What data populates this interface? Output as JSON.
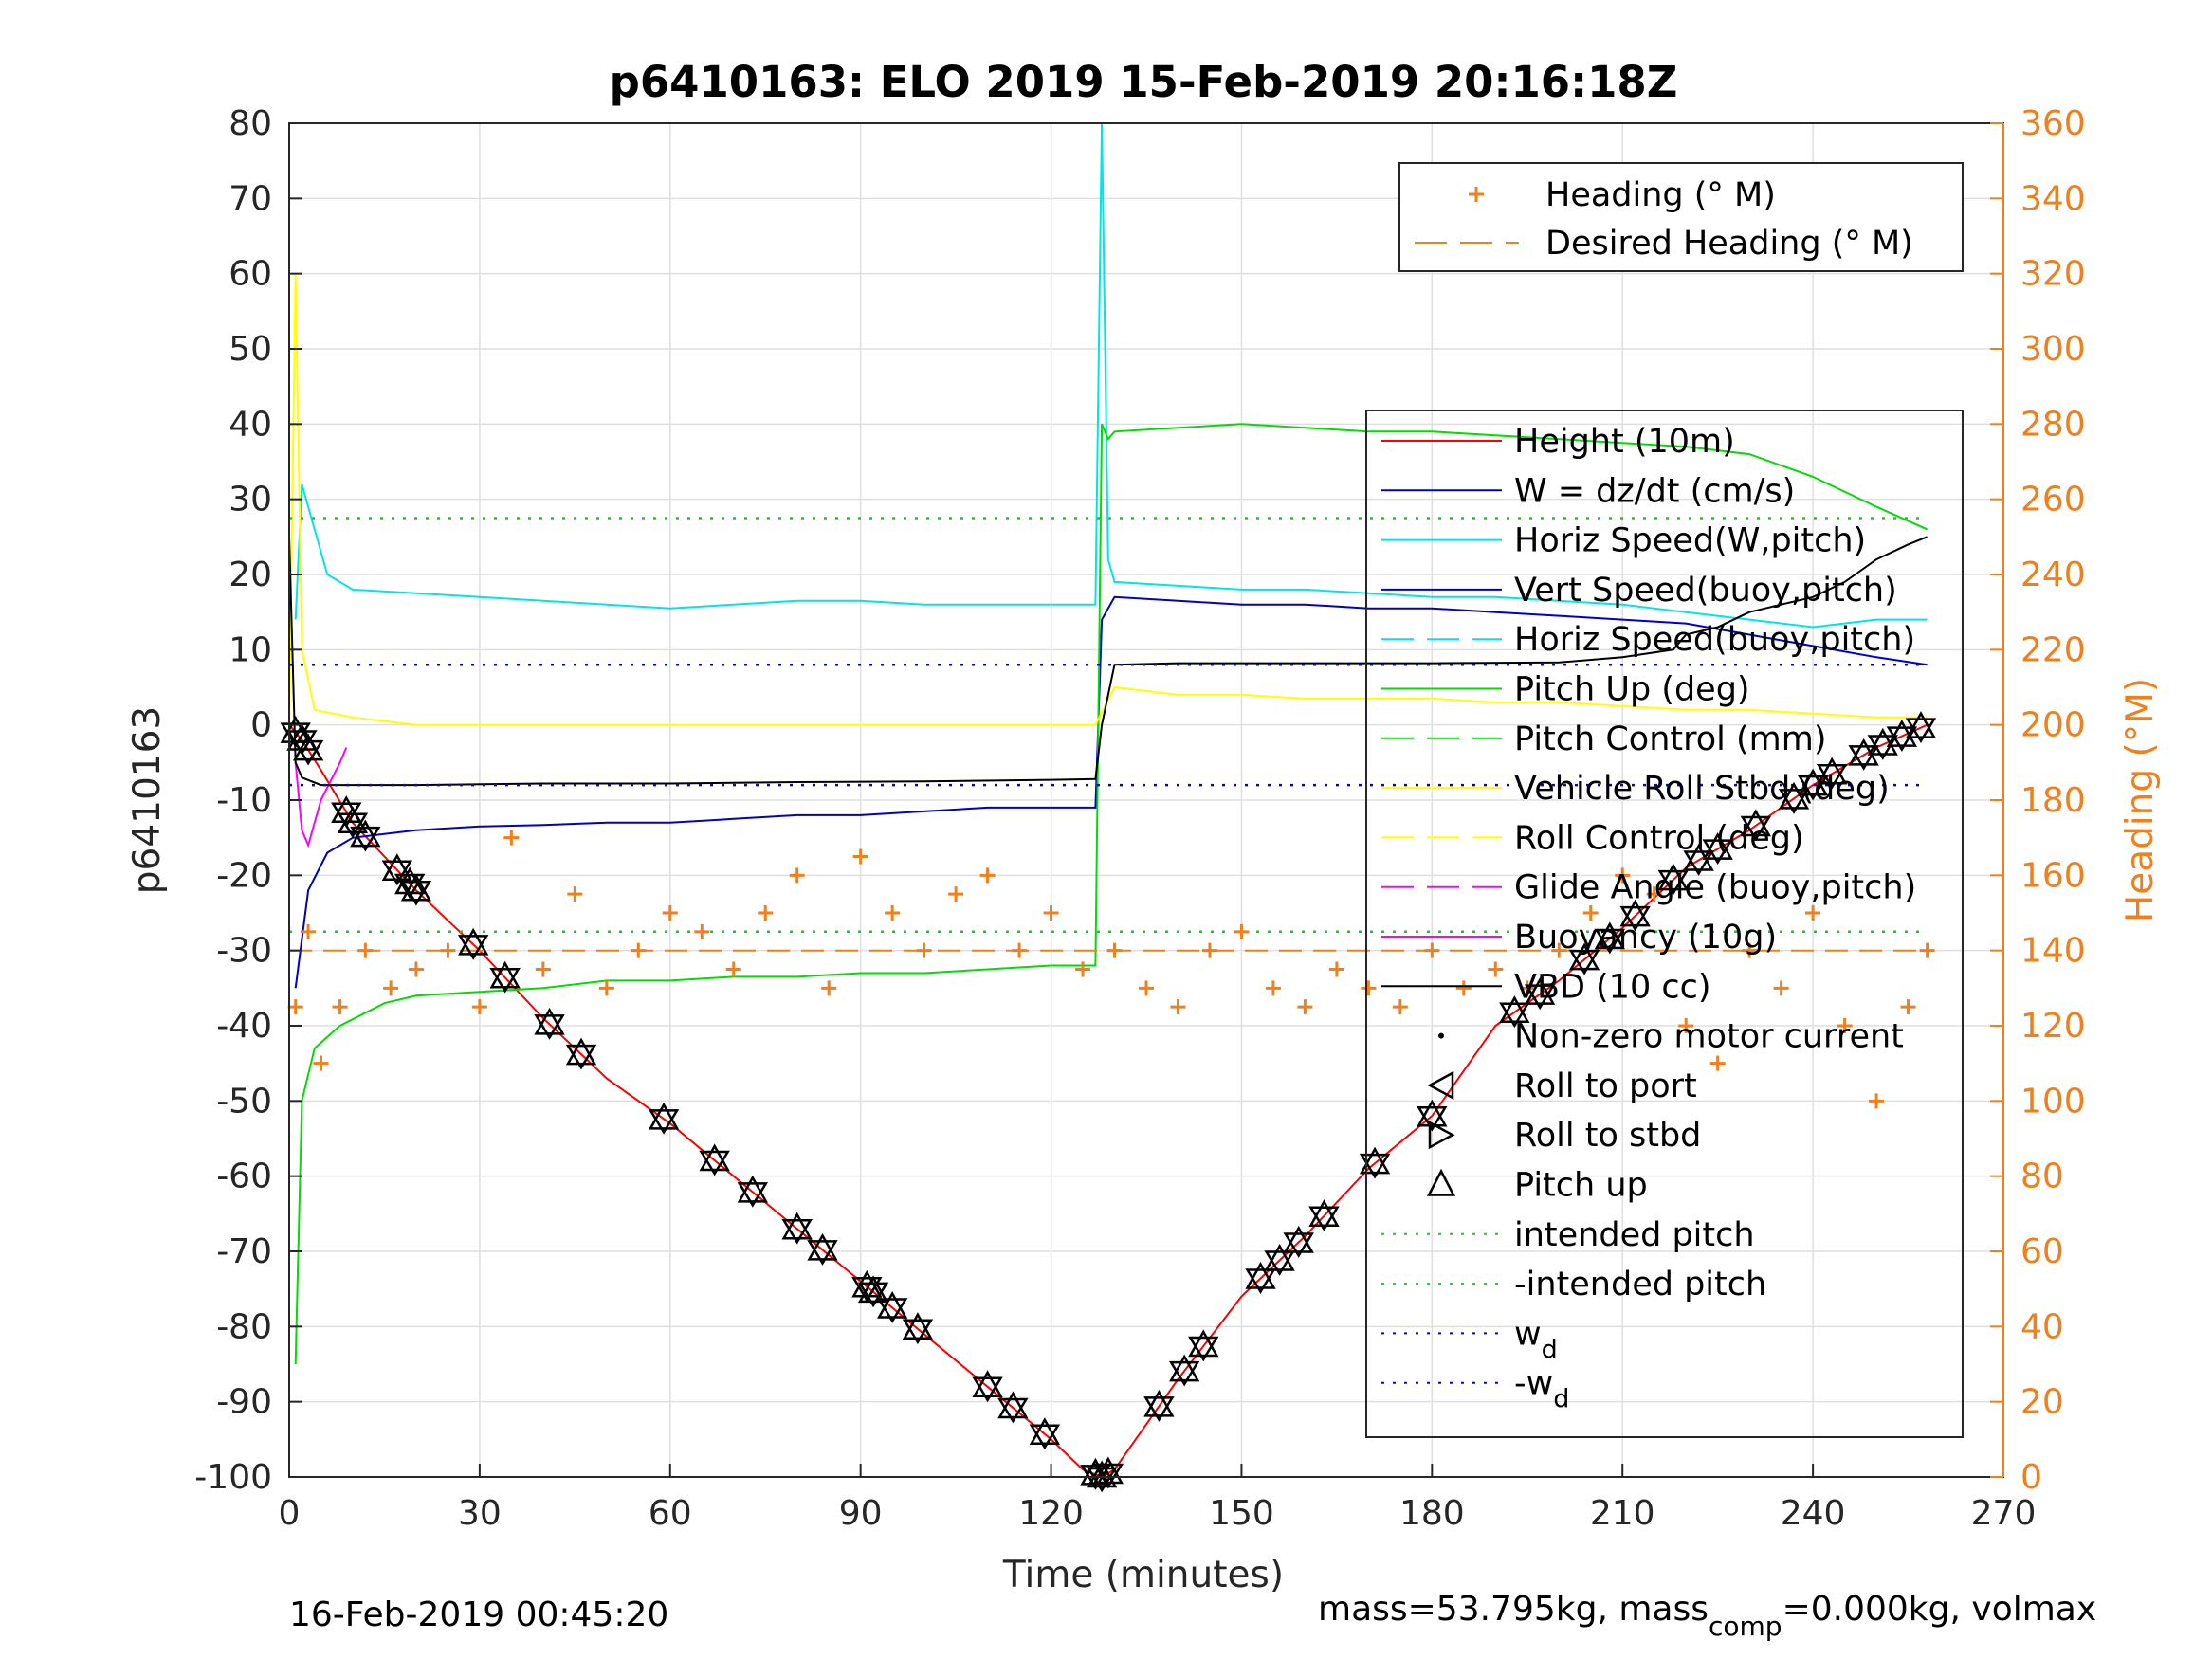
{
  "colors": {
    "heading": "#f07f1c",
    "height": "#ff0000",
    "w": "#0000cc",
    "horiz_speed": "#00e5e5",
    "pitch": "#00dd00",
    "roll": "#ffff00",
    "glide": "#ff00ff",
    "vbd": "#000000",
    "intended_pitch": "#00dd00",
    "w_d": "#0000ff"
  },
  "chart_data": {
    "type": "line",
    "title": "p6410163: ELO 2019 15-Feb-2019 20:16:18Z",
    "xlabel": "Time (minutes)",
    "ylabel": "p6410163",
    "ylabel_right": "Heading (°M)",
    "xlim": [
      0,
      270
    ],
    "ylim": [
      -100,
      80
    ],
    "ylim_right": [
      0,
      360
    ],
    "x_ticks": [
      0,
      30,
      60,
      90,
      120,
      150,
      180,
      210,
      240,
      270
    ],
    "y_ticks": [
      80,
      70,
      60,
      50,
      40,
      30,
      20,
      10,
      0,
      -10,
      -20,
      -30,
      -40,
      -50,
      -60,
      -70,
      -80,
      -90,
      -100
    ],
    "y_ticks_right": [
      360,
      340,
      320,
      300,
      280,
      260,
      240,
      220,
      200,
      180,
      160,
      140,
      120,
      100,
      80,
      60,
      40,
      20,
      0
    ],
    "grid": true,
    "legend_top": {
      "placement": "top-right",
      "entries": [
        "Heading (° M)",
        "Desired Heading (° M)"
      ]
    },
    "legend_main": {
      "placement": "right",
      "entries": [
        "Height (10m)",
        "W = dz/dt (cm/s)",
        "Horiz Speed(W,pitch)",
        "Vert Speed(buoy,pitch)",
        "Horiz Speed(buoy,pitch)",
        "Pitch Up (deg)",
        "Pitch Control (mm)",
        "Vehicle Roll Stbd (deg)",
        "Roll Control (deg)",
        "Glide Angle (buoy,pitch)",
        "Buoyancy (10g)",
        "VBD (10 cc)",
        "Non-zero motor current",
        "Roll to port",
        "Roll to stbd",
        "Pitch up",
        "intended pitch",
        "-intended pitch",
        "w",
        "-w"
      ],
      "subscript": "d"
    },
    "series": [
      {
        "name": "Height (10m)",
        "x": [
          0,
          2,
          5,
          10,
          20,
          30,
          40,
          50,
          60,
          70,
          80,
          90,
          100,
          110,
          120,
          125,
          128,
          130,
          140,
          150,
          160,
          170,
          180,
          190,
          200,
          210,
          220,
          230,
          240,
          250,
          258
        ],
        "y": [
          0,
          -2,
          -6,
          -13,
          -22,
          -30,
          -39,
          -47,
          -53,
          -60,
          -67,
          -74,
          -81,
          -88,
          -95,
          -99,
          -100,
          -99,
          -87,
          -76,
          -68,
          -59,
          -52,
          -40,
          -34,
          -27,
          -19,
          -14,
          -8,
          -3,
          0
        ]
      },
      {
        "name": "W = dz/dt (cm/s)",
        "x": [
          1,
          3,
          6,
          10,
          20,
          30,
          40,
          50,
          60,
          70,
          80,
          90,
          100,
          110,
          120,
          127,
          128,
          130,
          140,
          150,
          160,
          170,
          180,
          190,
          200,
          210,
          220,
          230,
          240,
          250,
          258
        ],
        "y": [
          -35,
          -22,
          -17,
          -15,
          -14,
          -13.5,
          -13.3,
          -13,
          -13,
          -12.5,
          -12,
          -12,
          -11.5,
          -11,
          -11,
          -11,
          14,
          17,
          16.5,
          16,
          16,
          15.5,
          15.5,
          15,
          14.5,
          14,
          13.5,
          12,
          10.5,
          9,
          8
        ]
      },
      {
        "name": "Horiz Speed(W,pitch)",
        "x": [
          1,
          2,
          4,
          6,
          10,
          20,
          30,
          40,
          50,
          60,
          70,
          80,
          90,
          100,
          110,
          120,
          127,
          128,
          129,
          130,
          140,
          150,
          160,
          170,
          180,
          190,
          200,
          210,
          220,
          230,
          240,
          250,
          258
        ],
        "y": [
          14,
          32,
          26,
          20,
          18,
          17.5,
          17,
          16.5,
          16,
          15.5,
          16,
          16.5,
          16.5,
          16,
          16,
          16,
          16,
          80,
          22,
          19,
          18.5,
          18,
          18,
          17.5,
          17,
          17,
          16.5,
          16,
          15,
          14,
          13,
          14,
          14
        ]
      },
      {
        "name": "Pitch Up (deg)",
        "x": [
          1,
          2,
          4,
          8,
          15,
          20,
          30,
          40,
          50,
          60,
          70,
          80,
          90,
          100,
          110,
          120,
          127,
          128,
          129,
          130,
          140,
          150,
          160,
          170,
          180,
          190,
          200,
          210,
          220,
          230,
          240,
          250,
          258
        ],
        "y": [
          -85,
          -50,
          -43,
          -40,
          -37,
          -36,
          -35.5,
          -35,
          -34,
          -34,
          -33.5,
          -33.5,
          -33,
          -33,
          -32.5,
          -32,
          -32,
          40,
          38,
          39,
          39.5,
          40,
          39.5,
          39,
          39,
          38.5,
          38,
          37.5,
          37,
          36,
          33,
          29,
          26
        ]
      },
      {
        "name": "Vehicle Roll Stbd (deg)",
        "x": [
          0,
          1,
          2,
          4,
          10,
          20,
          30,
          40,
          50,
          60,
          70,
          80,
          90,
          100,
          110,
          120,
          127,
          130,
          140,
          150,
          160,
          170,
          180,
          190,
          200,
          210,
          220,
          230,
          240,
          250,
          258
        ],
        "y": [
          0,
          60,
          10,
          2,
          1,
          0,
          0,
          0,
          0,
          0,
          0,
          0,
          0,
          0,
          0,
          0,
          0,
          5,
          4,
          4,
          3.5,
          3.5,
          3.5,
          3,
          3,
          2.5,
          2,
          2,
          1.5,
          1,
          1
        ]
      },
      {
        "name": "Glide Angle (buoy,pitch)",
        "x": [
          1,
          2,
          3,
          5,
          8,
          9
        ],
        "y": [
          -5,
          -14,
          -16,
          -10,
          -5,
          -3
        ]
      },
      {
        "name": "VBD (10 cc)",
        "x": [
          0,
          1,
          2,
          5,
          20,
          40,
          60,
          80,
          100,
          120,
          127,
          128,
          130,
          140,
          160,
          180,
          200,
          210,
          218,
          220,
          225,
          230,
          235,
          240,
          245,
          250,
          255,
          258
        ],
        "y": [
          25,
          -5,
          -7,
          -8,
          -8,
          -7.8,
          -7.8,
          -7.6,
          -7.5,
          -7.3,
          -7.2,
          0,
          8,
          8.2,
          8.2,
          8.2,
          8.3,
          9,
          10,
          12,
          13,
          15,
          16,
          17,
          19,
          22,
          24,
          25
        ]
      },
      {
        "name": "Heading (° M)",
        "axis": "right",
        "x": [
          1,
          3,
          5,
          8,
          12,
          16,
          20,
          25,
          30,
          35,
          40,
          45,
          50,
          55,
          60,
          65,
          70,
          75,
          80,
          85,
          90,
          95,
          100,
          105,
          110,
          115,
          120,
          125,
          130,
          135,
          140,
          145,
          150,
          155,
          160,
          165,
          170,
          175,
          180,
          185,
          190,
          195,
          200,
          205,
          210,
          215,
          220,
          225,
          230,
          235,
          240,
          245,
          250,
          255,
          258
        ],
        "y": [
          125,
          145,
          110,
          125,
          140,
          130,
          135,
          140,
          125,
          170,
          135,
          155,
          130,
          140,
          150,
          145,
          135,
          150,
          160,
          130,
          165,
          150,
          140,
          155,
          160,
          140,
          150,
          135,
          140,
          130,
          125,
          140,
          145,
          130,
          125,
          135,
          130,
          125,
          140,
          130,
          135,
          130,
          140,
          150,
          160,
          155,
          120,
          110,
          140,
          130,
          150,
          120,
          100,
          125,
          140
        ]
      },
      {
        "name": "Desired Heading (° M)",
        "axis": "right",
        "x": [
          0,
          258
        ],
        "y": [
          140,
          140
        ]
      },
      {
        "name": "intended pitch",
        "x": [
          0,
          258
        ],
        "y": [
          27.5,
          27.5
        ]
      },
      {
        "name": "-intended pitch",
        "x": [
          0,
          258
        ],
        "y": [
          -27.5,
          -27.5
        ]
      },
      {
        "name": "w",
        "x": [
          0,
          258
        ],
        "y": [
          8,
          8
        ]
      },
      {
        "name": "-w",
        "x": [
          0,
          258
        ],
        "y": [
          -8,
          -8
        ]
      }
    ],
    "markers": {
      "pitch_up": {
        "x": [
          1,
          2,
          3,
          9,
          10,
          12,
          17,
          19,
          20,
          29,
          34,
          41,
          46,
          59,
          67,
          73,
          80,
          84,
          91,
          92,
          95,
          99,
          110,
          114,
          119,
          127,
          128,
          129,
          137,
          141,
          144,
          153,
          156,
          159,
          163,
          171,
          180,
          193,
          197,
          204,
          208,
          212,
          218,
          222,
          225,
          231,
          237,
          240,
          243,
          248,
          251,
          254,
          257
        ]
      }
    },
    "footer_left": "16-Feb-2019 00:45:20",
    "footer_right_prefix": "mass=53.795kg, mass",
    "footer_right_sub": "comp",
    "footer_right_suffix": "=0.000kg, volmax"
  }
}
